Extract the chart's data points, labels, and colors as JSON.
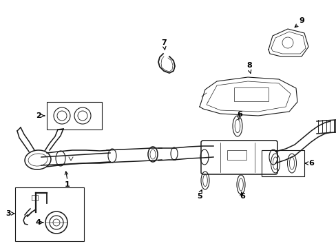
{
  "bg_color": "#ffffff",
  "line_color": "#1a1a1a",
  "fig_width": 4.89,
  "fig_height": 3.6,
  "dpi": 100,
  "label_fs": 8.0
}
